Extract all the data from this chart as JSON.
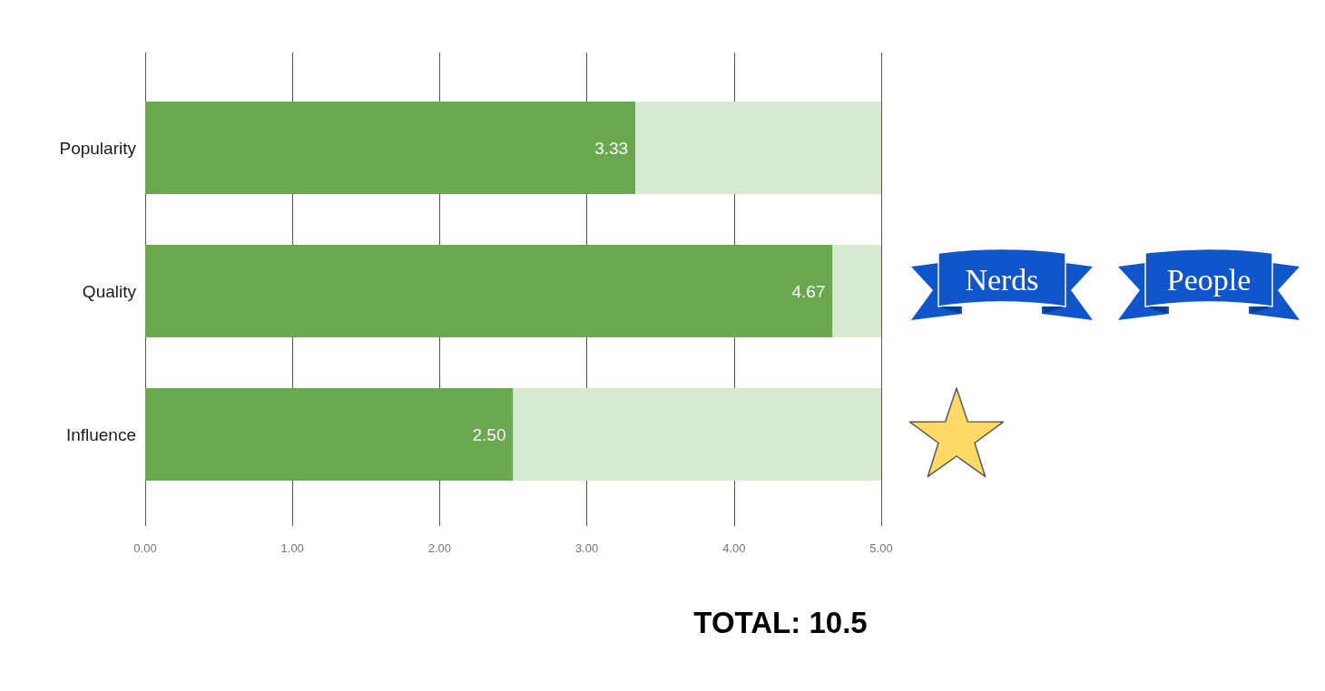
{
  "chart_data": {
    "type": "bar",
    "orientation": "horizontal",
    "stacked": true,
    "categories": [
      "Popularity",
      "Quality",
      "Influence"
    ],
    "series": [
      {
        "color": "#6aa84f",
        "values": [
          3.33,
          4.67,
          2.5
        ],
        "value_labels": [
          "3.33",
          "4.67",
          "2.50"
        ]
      },
      {
        "color": "#d9ead3",
        "values": [
          1.67,
          0.33,
          2.5
        ]
      }
    ],
    "xlim": [
      0,
      5
    ],
    "xticks": [
      {
        "value": 0,
        "label": "0.00"
      },
      {
        "value": 1,
        "label": "1.00"
      },
      {
        "value": 2,
        "label": "2.00"
      },
      {
        "value": 3,
        "label": "3.00"
      },
      {
        "value": 4,
        "label": "4.00"
      },
      {
        "value": 5,
        "label": "5.00"
      }
    ],
    "grid": "x",
    "annotations": [
      "Nerds",
      "People",
      "TOTAL: 10.5"
    ]
  }
}
